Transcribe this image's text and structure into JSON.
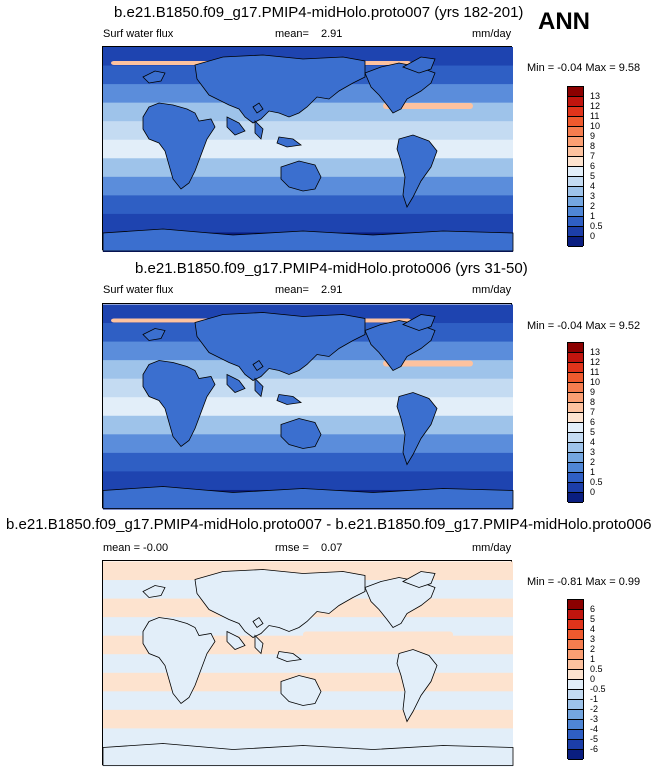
{
  "season": "ANN",
  "panels": [
    {
      "title": "b.e21.B1850.f09_g17.PMIP4-midHolo.proto007 (yrs 182-201)",
      "left_label": "Surf water flux",
      "mid_label": "mean=",
      "mid_value": "2.91",
      "units": "mm/day",
      "minmax": "Min =  -0.04 Max =   9.58",
      "colorbar": {
        "labels": [
          "13",
          "12",
          "11",
          "10",
          "9",
          "8",
          "7",
          "6",
          "5",
          "4",
          "3",
          "2",
          "1",
          "0.5",
          "0"
        ],
        "colors": [
          "#8b0000",
          "#c0150e",
          "#e0341b",
          "#ef5a2e",
          "#f57d4f",
          "#fb9f73",
          "#fdc29f",
          "#fde3cf",
          "#e2eef9",
          "#c4dbf2",
          "#9ec3ea",
          "#74a6e0",
          "#4f86d6",
          "#2f5fc4",
          "#1c3ea8",
          "#0a1e80"
        ]
      },
      "map_style": "flux"
    },
    {
      "title": "b.e21.B1850.f09_g17.PMIP4-midHolo.proto006 (yrs 31-50)",
      "left_label": "Surf water flux",
      "mid_label": "mean=",
      "mid_value": "2.91",
      "units": "mm/day",
      "minmax": "Min =  -0.04 Max =   9.52",
      "colorbar": {
        "labels": [
          "13",
          "12",
          "11",
          "10",
          "9",
          "8",
          "7",
          "6",
          "5",
          "4",
          "3",
          "2",
          "1",
          "0.5",
          "0"
        ],
        "colors": [
          "#8b0000",
          "#c0150e",
          "#e0341b",
          "#ef5a2e",
          "#f57d4f",
          "#fb9f73",
          "#fdc29f",
          "#fde3cf",
          "#e2eef9",
          "#c4dbf2",
          "#9ec3ea",
          "#74a6e0",
          "#4f86d6",
          "#2f5fc4",
          "#1c3ea8",
          "#0a1e80"
        ]
      },
      "map_style": "flux"
    },
    {
      "title": "b.e21.B1850.f09_g17.PMIP4-midHolo.proto007 - b.e21.B1850.f09_g17.PMIP4-midHolo.proto006",
      "left_label": "mean =  -0.00",
      "mid_label": "rmse =",
      "mid_value": "0.07",
      "units": "mm/day",
      "minmax": "Min =  -0.81 Max =   0.99",
      "colorbar": {
        "labels": [
          "6",
          "5",
          "4",
          "3",
          "2",
          "1",
          "0.5",
          "0",
          "-0.5",
          "-1",
          "-2",
          "-3",
          "-4",
          "-5",
          "-6"
        ],
        "colors": [
          "#8b0000",
          "#c0150e",
          "#e0341b",
          "#ef5a2e",
          "#f57d4f",
          "#fb9f73",
          "#fdc29f",
          "#fde3cf",
          "#e2eef9",
          "#c4dbf2",
          "#9ec3ea",
          "#74a6e0",
          "#4f86d6",
          "#2f5fc4",
          "#1c3ea8",
          "#0a1e80"
        ]
      },
      "map_style": "diff"
    }
  ]
}
